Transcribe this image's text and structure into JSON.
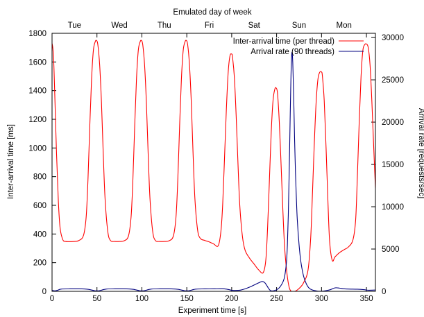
{
  "chart_data": {
    "type": "line",
    "title": "",
    "xlabel": "Experiment time [s]",
    "ylabel_left": "Inter-arrival time [ms]",
    "ylabel_right": "Arrival rate [requests/sec]",
    "top_axis_label": "Emulated day of week",
    "xlim": [
      0,
      360
    ],
    "ylim_left": [
      0,
      1800
    ],
    "ylim_right": [
      0,
      30500
    ],
    "x_ticks": [
      0,
      50,
      100,
      150,
      200,
      250,
      300,
      350
    ],
    "y_left_ticks": [
      0,
      200,
      400,
      600,
      800,
      1000,
      1200,
      1400,
      1600,
      1800
    ],
    "y_right_ticks": [
      0,
      5000,
      10000,
      15000,
      20000,
      25000,
      30000
    ],
    "top_ticks": [
      {
        "label": "Tue",
        "x": 25
      },
      {
        "label": "Wed",
        "x": 75
      },
      {
        "label": "Thu",
        "x": 125
      },
      {
        "label": "Fri",
        "x": 175
      },
      {
        "label": "Sat",
        "x": 225
      },
      {
        "label": "Sun",
        "x": 275
      },
      {
        "label": "Mon",
        "x": 325
      }
    ],
    "top_minor_ticks": [
      50,
      100,
      150,
      200,
      250,
      300,
      350
    ],
    "legend_position": "top-right",
    "series": [
      {
        "name": "Inter-arrival time (per thread)",
        "axis": "left",
        "color": "#ff0000",
        "x": [
          0,
          1,
          2,
          3,
          5,
          7,
          9,
          12,
          15,
          20,
          25,
          30,
          35,
          38,
          40,
          42,
          44,
          46,
          48,
          49.5,
          51,
          53,
          55,
          57,
          59,
          62,
          65,
          70,
          75,
          80,
          85,
          88,
          90,
          92,
          94,
          96,
          98,
          99.5,
          101,
          103,
          105,
          107,
          109,
          112,
          115,
          120,
          125,
          130,
          135,
          138,
          140,
          142,
          144,
          146,
          148,
          149.5,
          151,
          153,
          155,
          157,
          159,
          162,
          165,
          170,
          175,
          180,
          185,
          188,
          190,
          192,
          194,
          196,
          198,
          200,
          201,
          203,
          205,
          207,
          209,
          212,
          215,
          220,
          225,
          230,
          235,
          238,
          240,
          242,
          244,
          246,
          248,
          249.5,
          251,
          253,
          255,
          257,
          259,
          262,
          265,
          270,
          275,
          280,
          285,
          288,
          290,
          292,
          294,
          296,
          298,
          300,
          301,
          303,
          305,
          307,
          309,
          312,
          315,
          320,
          325,
          330,
          335,
          338,
          340,
          342,
          344,
          346,
          348,
          350,
          352,
          354,
          356,
          358,
          360
        ],
        "values": [
          1730,
          1690,
          1580,
          1380,
          960,
          630,
          440,
          360,
          348,
          347,
          348,
          355,
          390,
          520,
          780,
          1150,
          1480,
          1680,
          1740,
          1750,
          1720,
          1580,
          1320,
          960,
          650,
          420,
          355,
          348,
          348,
          352,
          385,
          520,
          780,
          1150,
          1480,
          1680,
          1740,
          1750,
          1720,
          1580,
          1320,
          960,
          650,
          420,
          355,
          348,
          348,
          352,
          385,
          520,
          780,
          1150,
          1480,
          1680,
          1740,
          1750,
          1720,
          1580,
          1320,
          960,
          650,
          430,
          370,
          355,
          345,
          330,
          318,
          420,
          610,
          930,
          1260,
          1520,
          1640,
          1655,
          1630,
          1490,
          1220,
          890,
          600,
          380,
          285,
          230,
          190,
          150,
          130,
          220,
          450,
          780,
          1110,
          1330,
          1410,
          1418,
          1380,
          1180,
          880,
          560,
          300,
          100,
          10,
          0,
          20,
          60,
          150,
          380,
          700,
          1040,
          1320,
          1480,
          1528,
          1530,
          1500,
          1330,
          1010,
          650,
          350,
          215,
          240,
          270,
          290,
          310,
          360,
          500,
          820,
          1190,
          1500,
          1680,
          1720,
          1725,
          1700,
          1580,
          1330,
          1020,
          720
        ]
      },
      {
        "name": "Arrival rate (90 threads)",
        "axis": "right",
        "color": "#00007f",
        "x": [
          0,
          3,
          6,
          10,
          20,
          30,
          40,
          47,
          50,
          53,
          60,
          70,
          80,
          90,
          97,
          100,
          103,
          110,
          120,
          130,
          140,
          147,
          150,
          153,
          160,
          170,
          180,
          190,
          197,
          200,
          203,
          210,
          215,
          220,
          225,
          230,
          233,
          235,
          237,
          239,
          241,
          243,
          245,
          248,
          251,
          254,
          257,
          259,
          261,
          262,
          263,
          264,
          265,
          266,
          267,
          268,
          269,
          270,
          271,
          272,
          273,
          275,
          277,
          280,
          283,
          286,
          290,
          295,
          300,
          305,
          310,
          313,
          316,
          320,
          325,
          330,
          340,
          347,
          350,
          353,
          360
        ],
        "values": [
          120,
          60,
          120,
          260,
          300,
          300,
          240,
          80,
          60,
          80,
          260,
          300,
          300,
          240,
          80,
          60,
          80,
          260,
          300,
          300,
          240,
          80,
          60,
          80,
          260,
          290,
          300,
          310,
          200,
          120,
          100,
          150,
          300,
          500,
          750,
          1000,
          1150,
          1150,
          1000,
          700,
          350,
          100,
          50,
          100,
          250,
          550,
          1100,
          1800,
          3500,
          5500,
          9000,
          14000,
          20000,
          25500,
          28200,
          27000,
          23000,
          18000,
          14000,
          11000,
          8500,
          5500,
          3500,
          1800,
          900,
          400,
          150,
          40,
          20,
          80,
          200,
          350,
          420,
          380,
          300,
          270,
          250,
          200,
          150,
          130,
          150
        ]
      }
    ]
  }
}
